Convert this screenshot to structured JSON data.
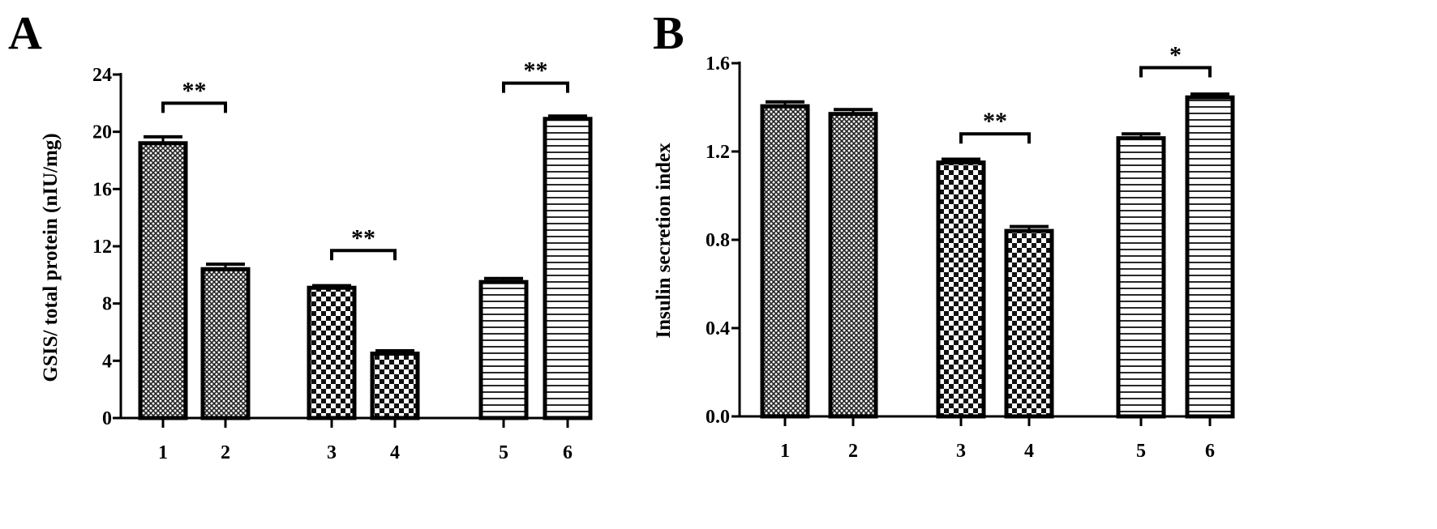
{
  "chart_data": [
    {
      "type": "bar",
      "panel_label": "A",
      "categories": [
        "1",
        "2",
        "3",
        "4",
        "5",
        "6"
      ],
      "values": [
        19.2,
        10.4,
        9.1,
        4.5,
        9.5,
        20.9
      ],
      "errors": [
        0.45,
        0.35,
        0.15,
        0.2,
        0.25,
        0.2
      ],
      "patterns": [
        "crosshatch",
        "crosshatch",
        "checker",
        "checker",
        "hlines",
        "hlines"
      ],
      "ylabel": "GSIS/ total protein (nIU/mg)",
      "xlabel": "",
      "ylim": [
        0,
        24
      ],
      "yticks": [
        "0",
        "4",
        "8",
        "12",
        "16",
        "20",
        "24"
      ],
      "significance": [
        {
          "from": 0,
          "to": 1,
          "label": "**",
          "y": 22
        },
        {
          "from": 2,
          "to": 3,
          "label": "**",
          "y": 11.7
        },
        {
          "from": 4,
          "to": 5,
          "label": "**",
          "y": 23.4
        }
      ]
    },
    {
      "type": "bar",
      "panel_label": "B",
      "categories": [
        "1",
        "2",
        "3",
        "4",
        "5",
        "6"
      ],
      "values": [
        1.405,
        1.37,
        1.15,
        0.84,
        1.26,
        1.445
      ],
      "errors": [
        0.02,
        0.02,
        0.015,
        0.02,
        0.02,
        0.015
      ],
      "patterns": [
        "crosshatch",
        "crosshatch",
        "checker",
        "checker",
        "hlines",
        "hlines"
      ],
      "ylabel": "Insulin secretion index",
      "xlabel": "",
      "ylim": [
        0,
        1.6
      ],
      "yticks": [
        "0.0",
        "0.4",
        "0.8",
        "1.2",
        "1.6"
      ],
      "significance": [
        {
          "from": 2,
          "to": 3,
          "label": "**",
          "y": 1.28
        },
        {
          "from": 4,
          "to": 5,
          "label": "*",
          "y": 1.58
        }
      ]
    }
  ]
}
